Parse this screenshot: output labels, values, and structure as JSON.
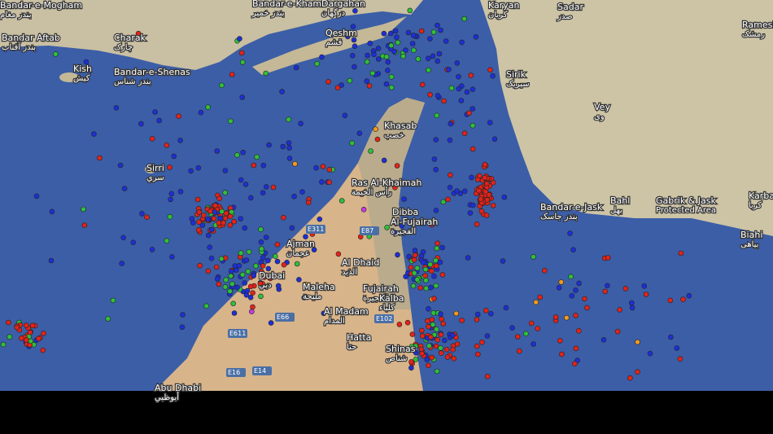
{
  "map": {
    "places": [
      {
        "name": "Bandar-e-Mogham",
        "local": "بندر مغام"
      },
      {
        "name": "Bandar Aftab",
        "local": "بندر آفتاب"
      },
      {
        "name": "Charak",
        "local": "چارک"
      },
      {
        "name": "Bandar-e-Shenas",
        "local": "بندر شناس"
      },
      {
        "name": "Kish",
        "local": "کیش"
      },
      {
        "name": "Bandar-e-Khamir",
        "local": "بندر خمیر"
      },
      {
        "name": "Dargahan",
        "local": "درگهان"
      },
      {
        "name": "Qeshm",
        "local": "قشم"
      },
      {
        "name": "Karyan",
        "local": "کریان"
      },
      {
        "name": "Sadar",
        "local": "صدر"
      },
      {
        "name": "Ramesh",
        "local": "رمشک"
      },
      {
        "name": "Sirik",
        "local": "سیریک"
      },
      {
        "name": "Vey",
        "local": "وی"
      },
      {
        "name": "Khasab",
        "local": "خصب"
      },
      {
        "name": "Ras Al-Khaimah",
        "local": "رأس الخيمة"
      },
      {
        "name": "Dibba",
        "local": "دبا"
      },
      {
        "name": "Al-Fujairah",
        "local": "الفجيرة"
      },
      {
        "name": "Bandar-e-Jask",
        "local": "بندر جاسک"
      },
      {
        "name": "Bahl",
        "local": "بهل"
      },
      {
        "name": "Gabrik & Jask",
        "local": "Protected Area"
      },
      {
        "name": "Karba",
        "local": "کربا"
      },
      {
        "name": "Biahi",
        "local": "بیاهی"
      },
      {
        "name": "Sirri",
        "local": "سري"
      },
      {
        "name": "Ajman",
        "local": "عجمان"
      },
      {
        "name": "Dubai",
        "local": "دبي"
      },
      {
        "name": "Al Dhaid",
        "local": "الذيد"
      },
      {
        "name": "Maleha",
        "local": "مليحة"
      },
      {
        "name": "Fujairah",
        "local": "الفجيرة"
      },
      {
        "name": "Kalba",
        "local": "كلباء"
      },
      {
        "name": "Al Madam",
        "local": "المدام"
      },
      {
        "name": "Hatta",
        "local": "حتا"
      },
      {
        "name": "Shinas",
        "local": "شناص"
      },
      {
        "name": "Abu Dhabi",
        "local": "أبوظبي"
      }
    ],
    "roads": [
      "E311",
      "E87",
      "E66",
      "E611",
      "E102",
      "E16",
      "E14"
    ]
  }
}
